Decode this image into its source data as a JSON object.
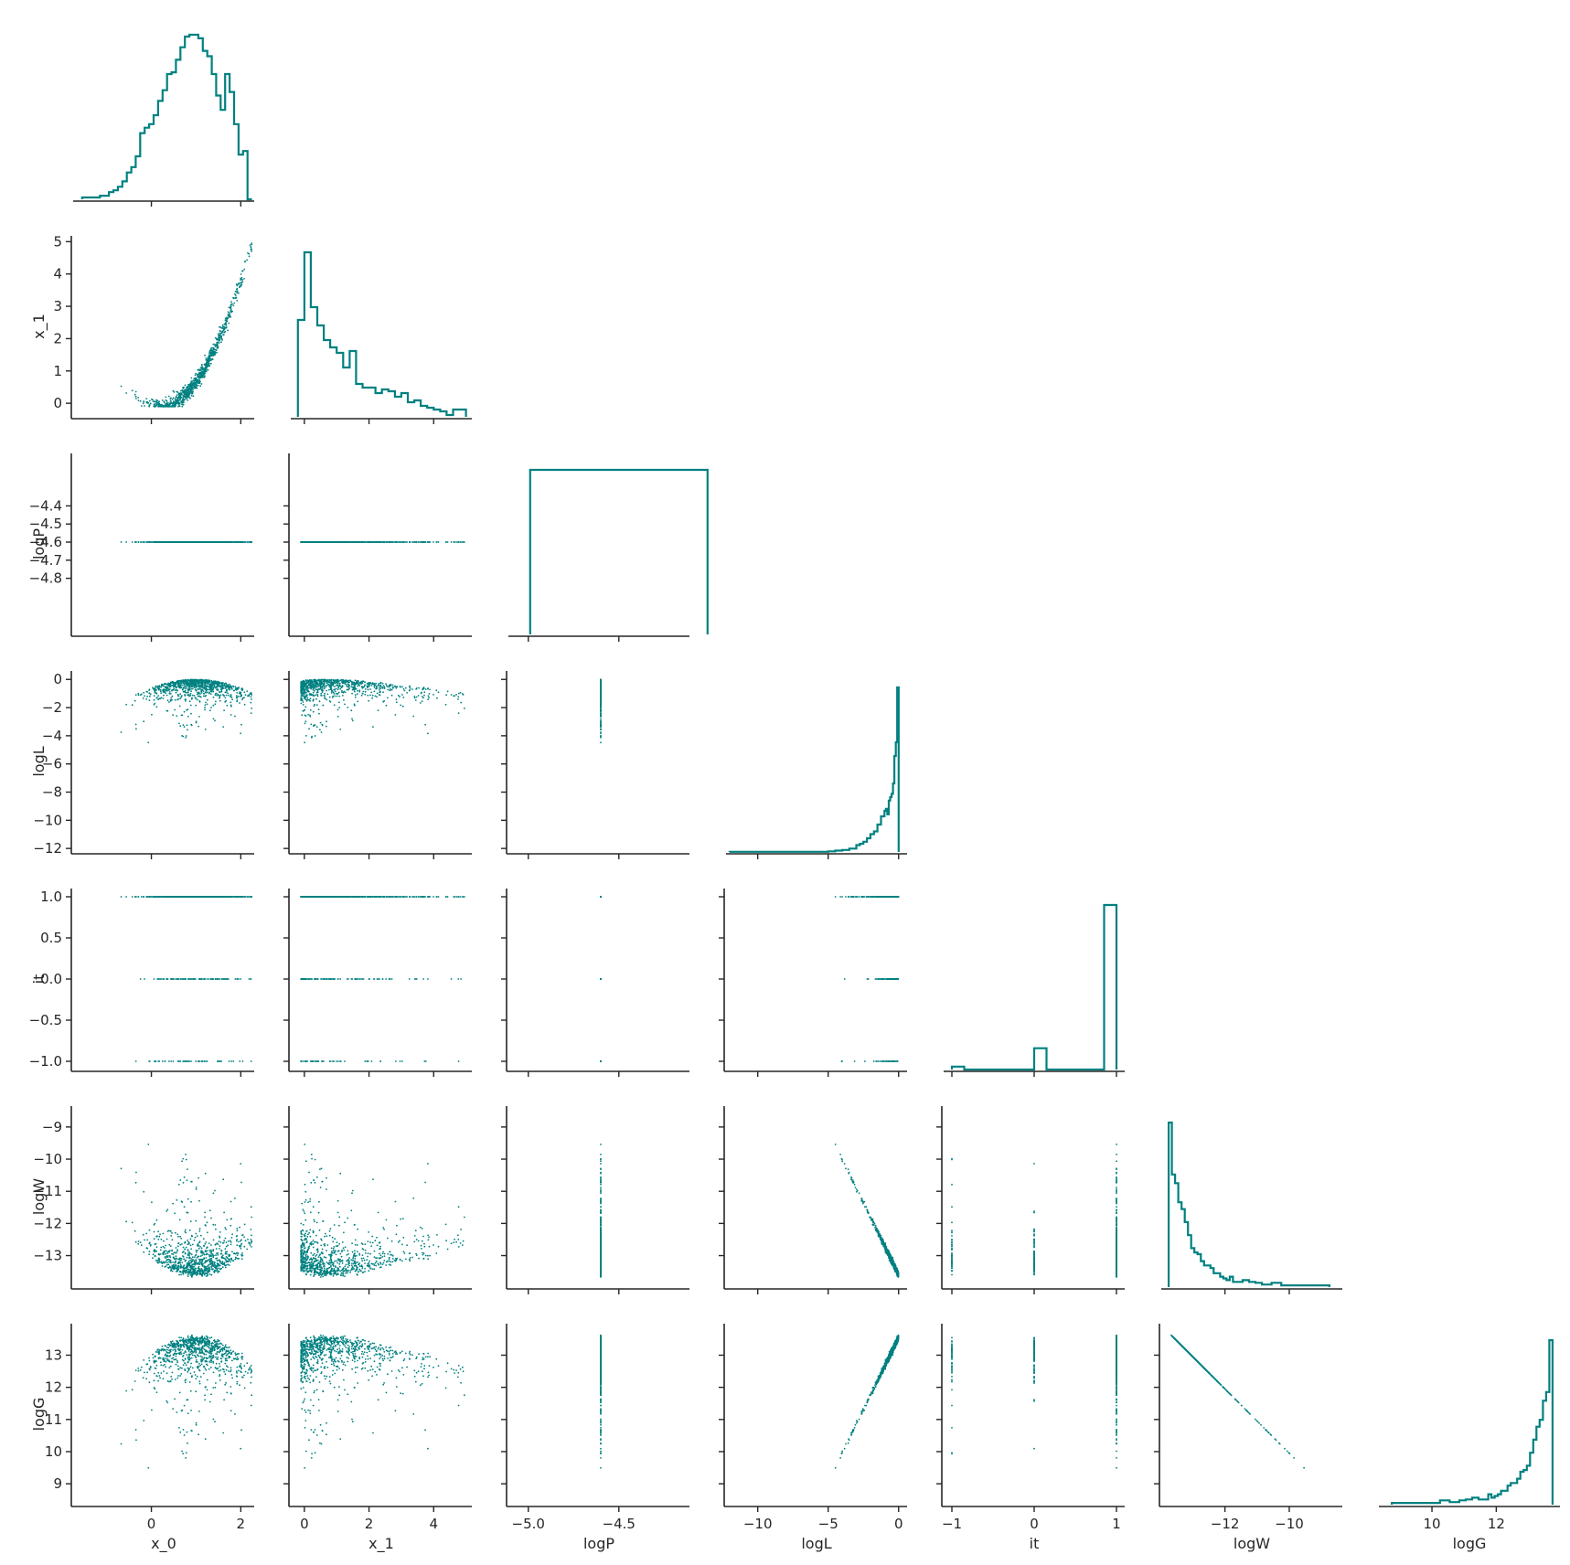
{
  "chart_data": {
    "type": "corner-plot",
    "color": "#008080",
    "variables": [
      "x_0",
      "x_1",
      "logP",
      "logL",
      "it",
      "logW",
      "logG"
    ],
    "ranges": {
      "x_0": [
        -1.75,
        2.3
      ],
      "x_1": [
        -0.42,
        5.18
      ],
      "logP": [
        -5.11,
        -4.11
      ],
      "logL": [
        -12.25,
        0.6
      ],
      "it": [
        -1.1,
        1.1
      ],
      "logW": [
        -13.98,
        -8.35
      ],
      "logG": [
        8.35,
        13.98
      ]
    },
    "ticks": {
      "x_0": [
        0,
        2
      ],
      "x_1": [
        0,
        2,
        4
      ],
      "logP": [
        -5.0,
        -4.5
      ],
      "logL": [
        -10,
        -5,
        0
      ],
      "it": [
        -1,
        0,
        1
      ],
      "logW": [
        -12,
        -10
      ],
      "logG": [
        10,
        12
      ]
    },
    "yticks": {
      "x_1": [
        0,
        1,
        2,
        3,
        4,
        5
      ],
      "logP": [
        -4.8,
        -4.7,
        -4.6,
        -4.5,
        -4.4
      ],
      "logL": [
        -12,
        -10,
        -8,
        -6,
        -4,
        -2,
        0
      ],
      "it": [
        -1.0,
        -0.5,
        0.0,
        0.5,
        1.0
      ],
      "logW": [
        -13,
        -12,
        -11,
        -10,
        -9
      ],
      "logG": [
        9,
        10,
        11,
        12,
        13
      ]
    },
    "tick_labels": {
      "x_0": [
        "0",
        "2"
      ],
      "x_1": [
        "0",
        "2",
        "4"
      ],
      "logP": [
        "−5.0",
        "−4.5"
      ],
      "logL": [
        "−10",
        "−5",
        "0"
      ],
      "it": [
        "−1",
        "0",
        "1"
      ],
      "logW": [
        "−12",
        "−10"
      ],
      "logG": [
        "10",
        "12"
      ]
    },
    "ytick_labels": {
      "x_1": [
        "0",
        "1",
        "2",
        "3",
        "4",
        "5"
      ],
      "logP": [
        "−4.8",
        "−4.7",
        "−4.6",
        "−4.5",
        "−4.4"
      ],
      "logL": [
        "−12",
        "−10",
        "−8",
        "−6",
        "−4",
        "−2",
        "0"
      ],
      "it": [
        "−1.0",
        "−0.5",
        "0.0",
        "0.5",
        "1.0"
      ],
      "logW": [
        "−13",
        "−12",
        "−11",
        "−10",
        "−9"
      ],
      "logG": [
        "9",
        "10",
        "11",
        "12",
        "13"
      ]
    },
    "histograms": {
      "x_0": {
        "edges": [
          -1.55,
          -1.45,
          -1.35,
          -1.25,
          -1.15,
          -0.95,
          -0.85,
          -0.75,
          -0.65,
          -0.55,
          -0.45,
          -0.35,
          -0.25,
          -0.15,
          -0.05,
          0.05,
          0.15,
          0.25,
          0.35,
          0.45,
          0.55,
          0.65,
          0.75,
          0.85,
          0.95,
          1.05,
          1.15,
          1.25,
          1.35,
          1.45,
          1.55,
          1.65,
          1.75,
          1.85,
          1.95,
          2.05,
          2.15,
          2.25
        ],
        "counts": [
          1,
          1,
          1,
          1,
          2,
          4,
          5,
          7,
          10,
          15,
          18,
          24,
          37,
          40,
          42,
          47,
          55,
          61,
          70,
          71,
          78,
          85,
          91,
          92,
          92,
          90,
          83,
          80,
          70,
          58,
          50,
          70,
          60,
          42,
          25,
          27,
          0
        ]
      },
      "x_1": {
        "edges": [
          -0.2,
          0.0,
          0.2,
          0.4,
          0.6,
          0.8,
          1.0,
          1.2,
          1.4,
          1.6,
          1.8,
          2.0,
          2.2,
          2.4,
          2.6,
          2.8,
          3.0,
          3.2,
          3.4,
          3.6,
          3.8,
          4.0,
          4.2,
          4.4,
          4.6,
          4.8,
          5.0
        ],
        "counts": [
          53,
          90,
          60,
          50,
          42,
          38,
          35,
          27,
          36,
          18,
          16,
          16,
          13,
          15,
          14,
          11,
          13,
          8,
          9,
          6,
          5,
          4,
          3,
          1,
          4,
          4
        ]
      },
      "logP": {
        "edges": [
          -4.99,
          -4.01
        ],
        "counts": [
          1
        ]
      },
      "logL": {
        "edges": [
          -12.0,
          -5.0,
          -4.5,
          -4.0,
          -3.5,
          -3.0,
          -2.75,
          -2.5,
          -2.25,
          -2.0,
          -1.75,
          -1.5,
          -1.25,
          -1.0,
          -0.9,
          -0.8,
          -0.7,
          -0.6,
          -0.5,
          -0.4,
          -0.3,
          -0.2,
          -0.1,
          0.0
        ],
        "counts": [
          0.3,
          1,
          2,
          3,
          5,
          10,
          12,
          15,
          20,
          26,
          30,
          40,
          52,
          60,
          63,
          55,
          75,
          80,
          85,
          100,
          140,
          160,
          240
        ]
      },
      "it": {
        "edges": [
          -1.0,
          -0.85,
          -0.15,
          0.0,
          0.15,
          0.85,
          1.0
        ],
        "counts": [
          0.3,
          0,
          0,
          2.2,
          0,
          17
        ]
      },
      "logW": {
        "edges": [
          -13.75,
          -13.65,
          -13.55,
          -13.45,
          -13.35,
          -13.25,
          -13.15,
          -13.05,
          -12.95,
          -12.85,
          -12.75,
          -12.65,
          -12.55,
          -12.45,
          -12.35,
          -12.25,
          -12.15,
          -12.05,
          -11.95,
          -11.85,
          -11.75,
          -11.65,
          -11.45,
          -11.25,
          -11.05,
          -10.85,
          -10.55,
          -10.25,
          -9.95,
          -9.55,
          -9.15,
          -8.75
        ],
        "counts": [
          190,
          130,
          120,
          98,
          90,
          75,
          60,
          45,
          40,
          38,
          30,
          25,
          25,
          22,
          16,
          16,
          12,
          10,
          8,
          12,
          6,
          6,
          8,
          6,
          5,
          3,
          5,
          2,
          2,
          2,
          2
        ]
      },
      "logG": {
        "edges": [
          8.75,
          9.15,
          9.55,
          9.95,
          10.25,
          10.55,
          10.85,
          11.05,
          11.25,
          11.45,
          11.65,
          11.75,
          11.85,
          11.95,
          12.05,
          12.15,
          12.25,
          12.35,
          12.45,
          12.55,
          12.65,
          12.75,
          12.85,
          12.95,
          13.05,
          13.15,
          13.25,
          13.35,
          13.45,
          13.55,
          13.65,
          13.75
        ],
        "counts": [
          2,
          2,
          2,
          2,
          5,
          3,
          5,
          6,
          8,
          6,
          6,
          12,
          8,
          10,
          12,
          16,
          16,
          22,
          25,
          25,
          30,
          38,
          40,
          45,
          60,
          75,
          90,
          98,
          120,
          130,
          190
        ]
      }
    },
    "scatter_points": 900,
    "scatter_seed": 7
  }
}
